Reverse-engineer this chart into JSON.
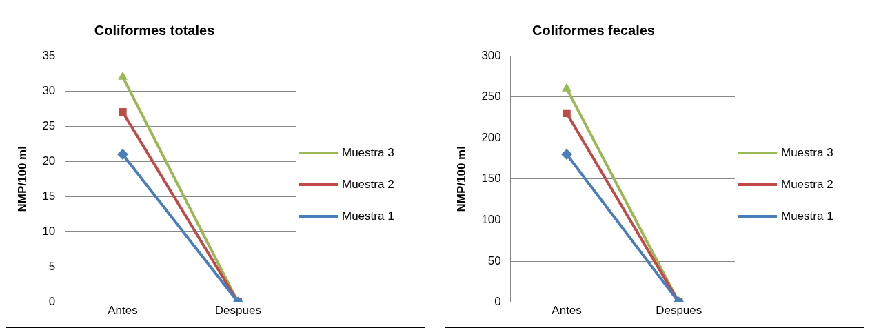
{
  "chart_data": [
    {
      "type": "line",
      "title": "Coliformes totales",
      "ylabel": "NMP/100 ml",
      "categories": [
        "Antes",
        "Despues"
      ],
      "ylim": [
        0,
        35
      ],
      "yticks": [
        0,
        5,
        10,
        15,
        20,
        25,
        30,
        35
      ],
      "grid": "y",
      "legend": "right",
      "series": [
        {
          "name": "Muestra 1",
          "color": "#4a7ebb",
          "marker": "diamond",
          "values": [
            21,
            0
          ]
        },
        {
          "name": "Muestra 2",
          "color": "#be4b48",
          "marker": "square",
          "values": [
            27,
            0
          ]
        },
        {
          "name": "Muestra 3",
          "color": "#98b954",
          "marker": "triangle",
          "values": [
            32,
            0
          ]
        }
      ]
    },
    {
      "type": "line",
      "title": "Coliformes fecales",
      "ylabel": "NMP/100 ml",
      "categories": [
        "Antes",
        "Despues"
      ],
      "ylim": [
        0,
        300
      ],
      "yticks": [
        0,
        50,
        100,
        150,
        200,
        250,
        300
      ],
      "grid": "y",
      "legend": "right",
      "series": [
        {
          "name": "Muestra 1",
          "color": "#4a7ebb",
          "marker": "diamond",
          "values": [
            180,
            0
          ]
        },
        {
          "name": "Muestra 2",
          "color": "#be4b48",
          "marker": "square",
          "values": [
            230,
            0
          ]
        },
        {
          "name": "Muestra 3",
          "color": "#98b954",
          "marker": "triangle",
          "values": [
            260,
            0
          ]
        }
      ]
    }
  ]
}
